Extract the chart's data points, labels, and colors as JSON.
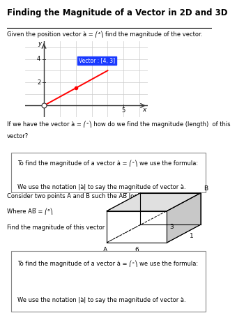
{
  "title": "Finding the Magnitude of a Vector in 2D and 3D",
  "vector_2d": [
    4,
    3
  ],
  "vector_label": "Vector : [4, 3]",
  "bg_color": "#ffffff",
  "grid_color": "#cccccc",
  "axis_color": "#333333",
  "vector_color": "#ff0000",
  "label_box_bg": "#1a3aff",
  "label_box_fg": "#ffffff",
  "box_edge_color": "#888888"
}
